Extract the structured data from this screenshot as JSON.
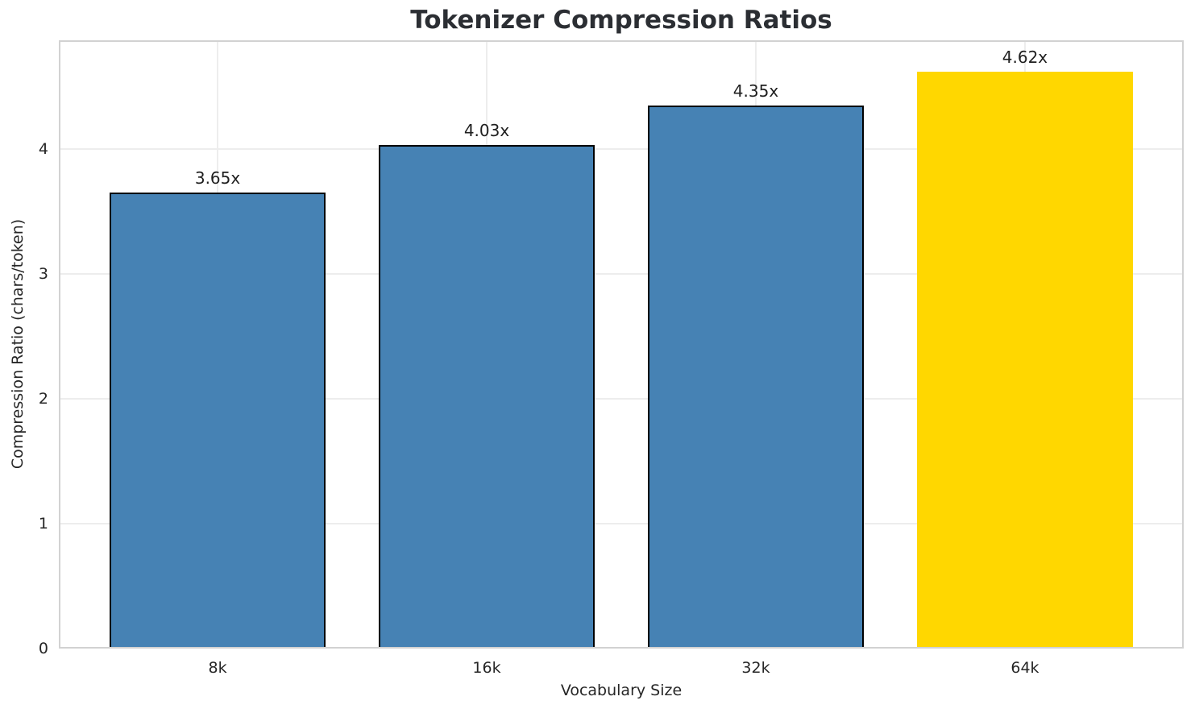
{
  "chart_data": {
    "type": "bar",
    "title": "Tokenizer Compression Ratios",
    "xlabel": "Vocabulary Size",
    "ylabel": "Compression Ratio (chars/token)",
    "categories": [
      "8k",
      "16k",
      "32k",
      "64k"
    ],
    "values": [
      3.65,
      4.03,
      4.35,
      4.62
    ],
    "bar_labels": [
      "3.65x",
      "4.03x",
      "4.35x",
      "4.62x"
    ],
    "yticks": [
      0,
      1,
      2,
      3,
      4
    ],
    "ylim": [
      0,
      4.87
    ],
    "bar_width": 0.8,
    "grid": true,
    "legend_position": "none",
    "bar_colors": [
      "#4682b4",
      "#4682b4",
      "#4682b4",
      "#ffd700"
    ],
    "bar_edge_colors": [
      "#000000",
      "#000000",
      "#000000",
      "none"
    ]
  },
  "colors": {
    "grid": "#ededed",
    "spine": "#d2d2d2",
    "text": "#262626",
    "title": "#2b2e33",
    "value_label": "#1f1f1f"
  }
}
